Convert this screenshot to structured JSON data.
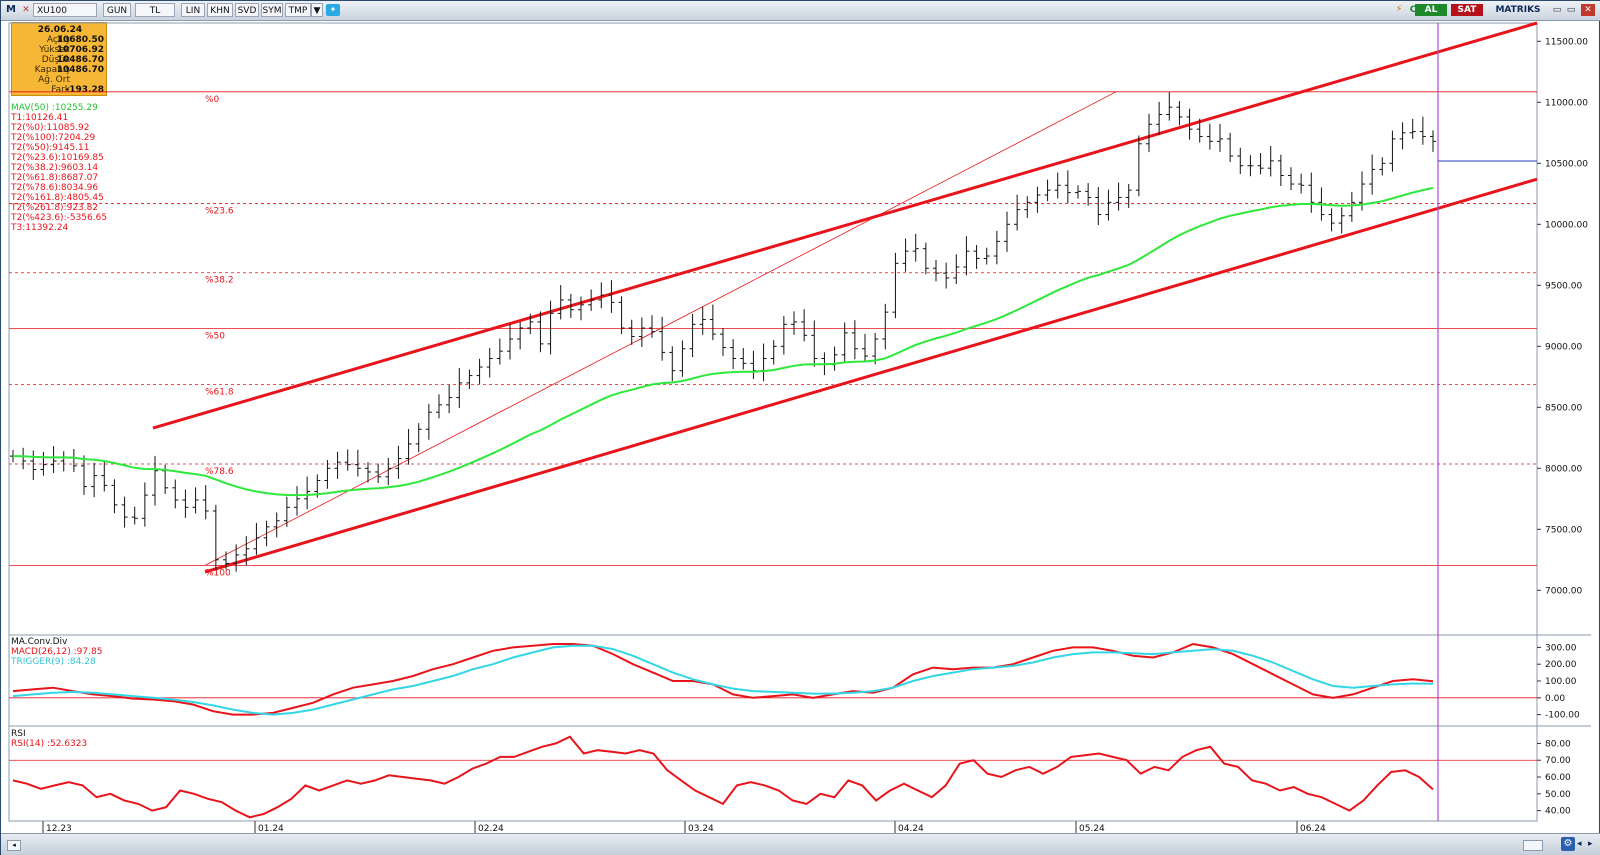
{
  "toolbar": {
    "symbol": "XU100",
    "buttons": [
      "GUN",
      "TL",
      "LIN",
      "KHN",
      "SVD",
      "SYM",
      "TMP"
    ],
    "buy_label": "AL",
    "sell_label": "SAT",
    "brand": "MATRIKS"
  },
  "info": {
    "date": "26.06.24",
    "rows": [
      {
        "label": "Açılış",
        "value": "10680.50"
      },
      {
        "label": "Yüksek",
        "value": "10706.92"
      },
      {
        "label": "Düşük",
        "value": "10486.70"
      },
      {
        "label": "Kapanış",
        "value": "10486.70"
      },
      {
        "label": "Ağ. Ort",
        "value": ""
      },
      {
        "label": "Fark",
        "value": "-193.28"
      }
    ]
  },
  "legend": {
    "mav": "MAV(50)      :10255.29",
    "lines": [
      "T1:10126.41",
      "T2(%0):11085.92",
      "T2(%100):7204.29",
      "T2(%50):9145.11",
      "T2(%23.6):10169.85",
      "T2(%38.2):9603.14",
      "T2(%61.8):8687.07",
      "T2(%78.6):8034.96",
      "T2(%161.8):4805.45",
      "T2(%261.8):923.82",
      "T2(%423.6):-5356.65",
      "T3:11392.24"
    ]
  },
  "macd_legend": {
    "title": "MA.Conv.Div",
    "macd": "MACD(26,12)  :97.85",
    "trigger": "TRIGGER(9)    :84.28"
  },
  "rsi_legend": {
    "title": "RSI",
    "rsi": "RSI(14)      :52.6323"
  },
  "colors": {
    "up": "#111111",
    "trend": "#e8141b",
    "mav": "#2ee83a",
    "macd": "#e8141b",
    "trigger": "#33d6e6",
    "cursor": "#b04ecc",
    "toolbar_green": "#1c8a2a",
    "toolbar_red": "#b5121b",
    "info_bg": "#f7b736"
  },
  "chart_data": [
    {
      "type": "ohlc",
      "title": "XU100",
      "x": [
        "12.23",
        "01.24",
        "02.24",
        "03.24",
        "04.24",
        "05.24",
        "06.24"
      ],
      "ylim": [
        6650,
        11650
      ],
      "yticks": [
        7000,
        7500,
        8000,
        8500,
        9000,
        9500,
        10000,
        10500,
        11000,
        11500
      ],
      "fib_levels": [
        {
          "label": "%0",
          "value": 11085.92
        },
        {
          "label": "%23.6",
          "value": 10169.85
        },
        {
          "label": "%38.2",
          "value": 9603.14
        },
        {
          "label": "%50",
          "value": 9145.11
        },
        {
          "label": "%61.8",
          "value": 8687.07
        },
        {
          "label": "%78.6",
          "value": 8034.96
        },
        {
          "label": "%100",
          "value": 7204.29
        }
      ],
      "closes": [
        8100,
        8060,
        7990,
        8030,
        8060,
        8090,
        8020,
        7850,
        7940,
        7860,
        7700,
        7600,
        7590,
        7780,
        7980,
        7840,
        7740,
        7680,
        7740,
        7650,
        7250,
        7220,
        7290,
        7340,
        7430,
        7520,
        7570,
        7680,
        7750,
        7810,
        7900,
        8000,
        8050,
        8030,
        8000,
        7970,
        7930,
        8000,
        8080,
        8200,
        8320,
        8460,
        8520,
        8580,
        8700,
        8760,
        8830,
        8900,
        8960,
        9060,
        9150,
        9200,
        9020,
        9270,
        9380,
        9300,
        9340,
        9380,
        9420,
        9360,
        9150,
        9080,
        9150,
        9120,
        8950,
        8800,
        8980,
        9180,
        9220,
        9100,
        8990,
        8900,
        8860,
        8800,
        8900,
        9000,
        9180,
        9200,
        9090,
        8900,
        8850,
        8930,
        9110,
        8980,
        8920,
        9060,
        9280,
        9680,
        9780,
        9800,
        9640,
        9600,
        9560,
        9650,
        9780,
        9720,
        9740,
        9860,
        10000,
        10120,
        10180,
        10240,
        10280,
        10320,
        10260,
        10270,
        10220,
        10080,
        10180,
        10220,
        10280,
        10660,
        10820,
        10900,
        10960,
        10880,
        10780,
        10720,
        10680,
        10700,
        10560,
        10480,
        10480,
        10460,
        10520,
        10400,
        10330,
        10320,
        10180,
        10080,
        10010,
        10070,
        10180,
        10330,
        10450,
        10500,
        10700,
        10750,
        10760,
        10720,
        10680
      ],
      "mav50": {
        "name": "MAV(50)",
        "end": 10255.29
      },
      "trend_lower": {
        "start": 7150,
        "end": 10370
      },
      "trend_upper": {
        "start": 8330,
        "end": 11650
      }
    },
    {
      "type": "line",
      "title": "MA.Conv.Div",
      "ylim": [
        -150,
        350
      ],
      "yticks": [
        -100,
        0,
        100,
        200,
        300
      ],
      "series": [
        {
          "name": "MACD(26,12)",
          "values": [
            40,
            50,
            60,
            40,
            20,
            10,
            -5,
            -10,
            -20,
            -40,
            -80,
            -100,
            -100,
            -90,
            -60,
            -30,
            20,
            60,
            80,
            100,
            130,
            170,
            200,
            240,
            280,
            300,
            310,
            320,
            320,
            310,
            260,
            200,
            150,
            100,
            100,
            80,
            20,
            0,
            10,
            20,
            0,
            20,
            40,
            30,
            60,
            140,
            180,
            170,
            180,
            180,
            200,
            240,
            280,
            300,
            300,
            280,
            250,
            240,
            270,
            320,
            300,
            260,
            200,
            140,
            80,
            20,
            0,
            20,
            60,
            100,
            110,
            98
          ]
        },
        {
          "name": "TRIGGER(9)",
          "values": [
            10,
            20,
            30,
            35,
            30,
            20,
            10,
            0,
            -10,
            -25,
            -45,
            -70,
            -90,
            -100,
            -90,
            -70,
            -40,
            -10,
            20,
            50,
            70,
            100,
            130,
            170,
            200,
            240,
            270,
            300,
            310,
            310,
            290,
            250,
            200,
            150,
            110,
            80,
            55,
            40,
            35,
            30,
            25,
            25,
            30,
            40,
            60,
            100,
            130,
            150,
            170,
            180,
            190,
            210,
            240,
            260,
            270,
            270,
            265,
            260,
            270,
            280,
            290,
            280,
            250,
            210,
            160,
            110,
            70,
            60,
            70,
            80,
            85,
            84
          ]
        }
      ]
    },
    {
      "type": "line",
      "title": "RSI",
      "ylim": [
        35,
        88
      ],
      "yticks": [
        40,
        50,
        60,
        70,
        80
      ],
      "reference": 70,
      "series": [
        {
          "name": "RSI(14)",
          "values": [
            58,
            56,
            53,
            55,
            57,
            55,
            48,
            50,
            46,
            44,
            40,
            42,
            52,
            50,
            47,
            45,
            40,
            36,
            38,
            42,
            47,
            55,
            52,
            55,
            58,
            56,
            58,
            61,
            60,
            59,
            58,
            56,
            60,
            65,
            68,
            72,
            72,
            75,
            78,
            80,
            84,
            74,
            76,
            75,
            74,
            76,
            74,
            64,
            58,
            52,
            48,
            44,
            55,
            57,
            55,
            52,
            46,
            44,
            50,
            48,
            58,
            55,
            46,
            52,
            56,
            52,
            48,
            55,
            68,
            70,
            62,
            60,
            64,
            66,
            62,
            66,
            72,
            73,
            74,
            72,
            70,
            62,
            66,
            64,
            72,
            76,
            78,
            68,
            66,
            58,
            56,
            52,
            54,
            50,
            48,
            44,
            40,
            46,
            55,
            63,
            64,
            60,
            52.6
          ]
        }
      ]
    }
  ]
}
